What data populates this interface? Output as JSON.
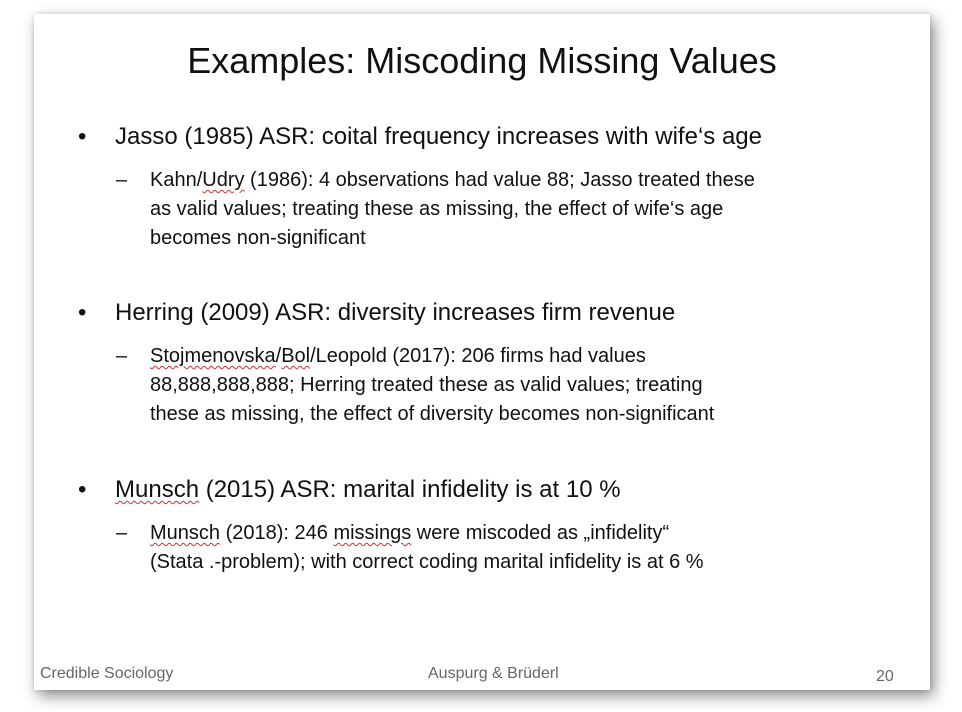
{
  "slide": {
    "title": "Examples: Miscoding Missing Values",
    "bullet_marker": "•",
    "dash_marker": "–",
    "items": [
      {
        "text": "Jasso (1985) ASR: coital frequency increases with wife‘s age",
        "sub": {
          "author": "Kahn/",
          "author_flagged": "Udry",
          "line1_rest": " (1986): 4 observations had value 88; Jasso treated these",
          "line2": "as valid values; treating these as missing, the effect of wife‘s age",
          "line3": "becomes non-significant"
        }
      },
      {
        "text": "Herring (2009) ASR: diversity increases firm revenue",
        "sub": {
          "author_a": "Stojmenovska",
          "author_sep1": "/",
          "author_b": "Bol",
          "author_sep2": "/Leopold",
          "line1_rest": " (2017): 206 firms had values",
          "line2": "88,888,888,888; Herring treated these as valid values; treating",
          "line3": "these as missing, the effect of diversity becomes non-significant"
        }
      },
      {
        "author_flagged": "Munsch",
        "text_rest": " (2015) ASR: marital infidelity is at 10 %",
        "sub": {
          "author_flagged": "Munsch",
          "line1_mid": " (2018): 246 ",
          "word_flagged": "missings",
          "line1_rest": " were miscoded as „infidelity“",
          "line2": "(Stata .-problem); with correct coding marital infidelity is at 6 %"
        }
      }
    ]
  },
  "footer": {
    "left": "Credible Sociology",
    "center": "Auspurg & Brüderl",
    "page_number": "20"
  }
}
